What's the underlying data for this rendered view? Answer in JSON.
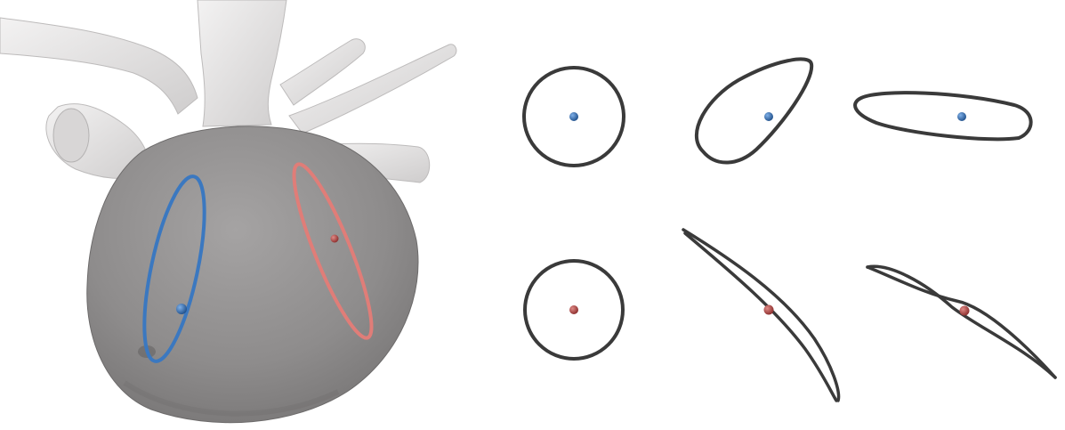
{
  "figure": {
    "background": "#ffffff",
    "atrium_model": {
      "surface_color": "#8f8d8d",
      "vessel_color": "#e9e8e8",
      "loops": [
        {
          "id": "blue",
          "color": "#3b78c0",
          "marker": "#2f5f9e"
        },
        {
          "id": "red",
          "color": "#e07d78",
          "marker": "#c4564f"
        }
      ]
    },
    "cross_sections": {
      "ring_color": "#3a3a3a",
      "rows": [
        {
          "id": "blue-row",
          "marker_color": "#2d5c94",
          "shapes": [
            "circle",
            "tilted-ellipse",
            "flat-ellipse"
          ]
        },
        {
          "id": "red-row",
          "marker_color": "#a43b3a",
          "shapes": [
            "circle",
            "thin-diagonal",
            "wavy-flat"
          ]
        }
      ]
    }
  }
}
